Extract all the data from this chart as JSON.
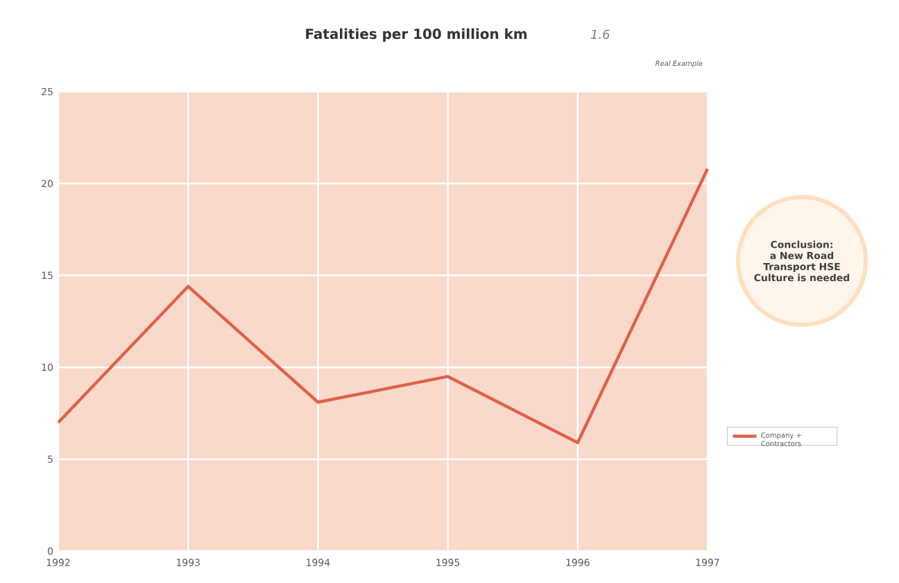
{
  "chart_data": {
    "type": "line",
    "title": "Fatalities per 100 million km",
    "subtitle": "1.6",
    "x": [
      1992,
      1993,
      1994,
      1995,
      1996,
      1997
    ],
    "series": [
      {
        "name": "Company + Contractors",
        "color": "#e0604a",
        "values": [
          7.0,
          14.4,
          8.1,
          9.5,
          5.9,
          20.8
        ]
      }
    ],
    "xlim": [
      1992,
      1997
    ],
    "xticks": [
      1992,
      1993,
      1994,
      1995,
      1996,
      1997
    ],
    "ylim": [
      0,
      25
    ],
    "yticks": [
      0,
      5,
      10,
      15,
      20,
      25
    ],
    "grid": true,
    "legend": "right",
    "marker": "none",
    "line_style": "solid",
    "annotations": [
      "Real Example",
      "Conclusion: a New Road Transport HSE Culture is needed"
    ]
  }
}
